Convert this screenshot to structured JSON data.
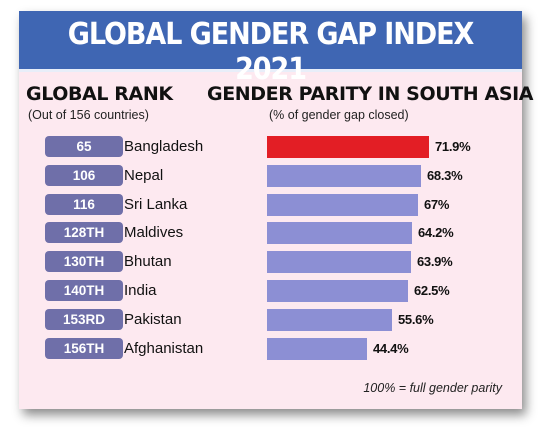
{
  "title": "GLOBAL GENDER GAP INDEX 2021",
  "left_header": {
    "title": "GLOBAL RANK",
    "subtitle": "(Out of 156 countries)"
  },
  "right_header": {
    "title": "GENDER PARITY IN SOUTH ASIA",
    "subtitle": "(% of gender gap closed)"
  },
  "footnote": "100% = full gender parity",
  "colors": {
    "highlight": "#e31e25",
    "bar": "#8c8fd4",
    "rank_badge": "#6f6fa9",
    "banner": "#3f66b3",
    "background": "#fde9f0"
  },
  "chart_data": {
    "type": "bar",
    "orientation": "horizontal",
    "title": "GENDER PARITY IN SOUTH ASIA",
    "subtitle": "(% of gender gap closed)",
    "categories": [
      "Bangladesh",
      "Nepal",
      "Sri Lanka",
      "Maldives",
      "Bhutan",
      "India",
      "Pakistan",
      "Afghanistan"
    ],
    "ranks": [
      "65",
      "106",
      "116",
      "128TH",
      "130TH",
      "140TH",
      "153RD",
      "156TH"
    ],
    "values": [
      71.9,
      68.3,
      67,
      64.2,
      63.9,
      62.5,
      55.6,
      44.4
    ],
    "value_labels": [
      "71.9%",
      "68.3%",
      "67%",
      "64.2%",
      "63.9%",
      "62.5%",
      "55.6%",
      "44.4%"
    ],
    "highlight_index": 0,
    "grid": false
  }
}
